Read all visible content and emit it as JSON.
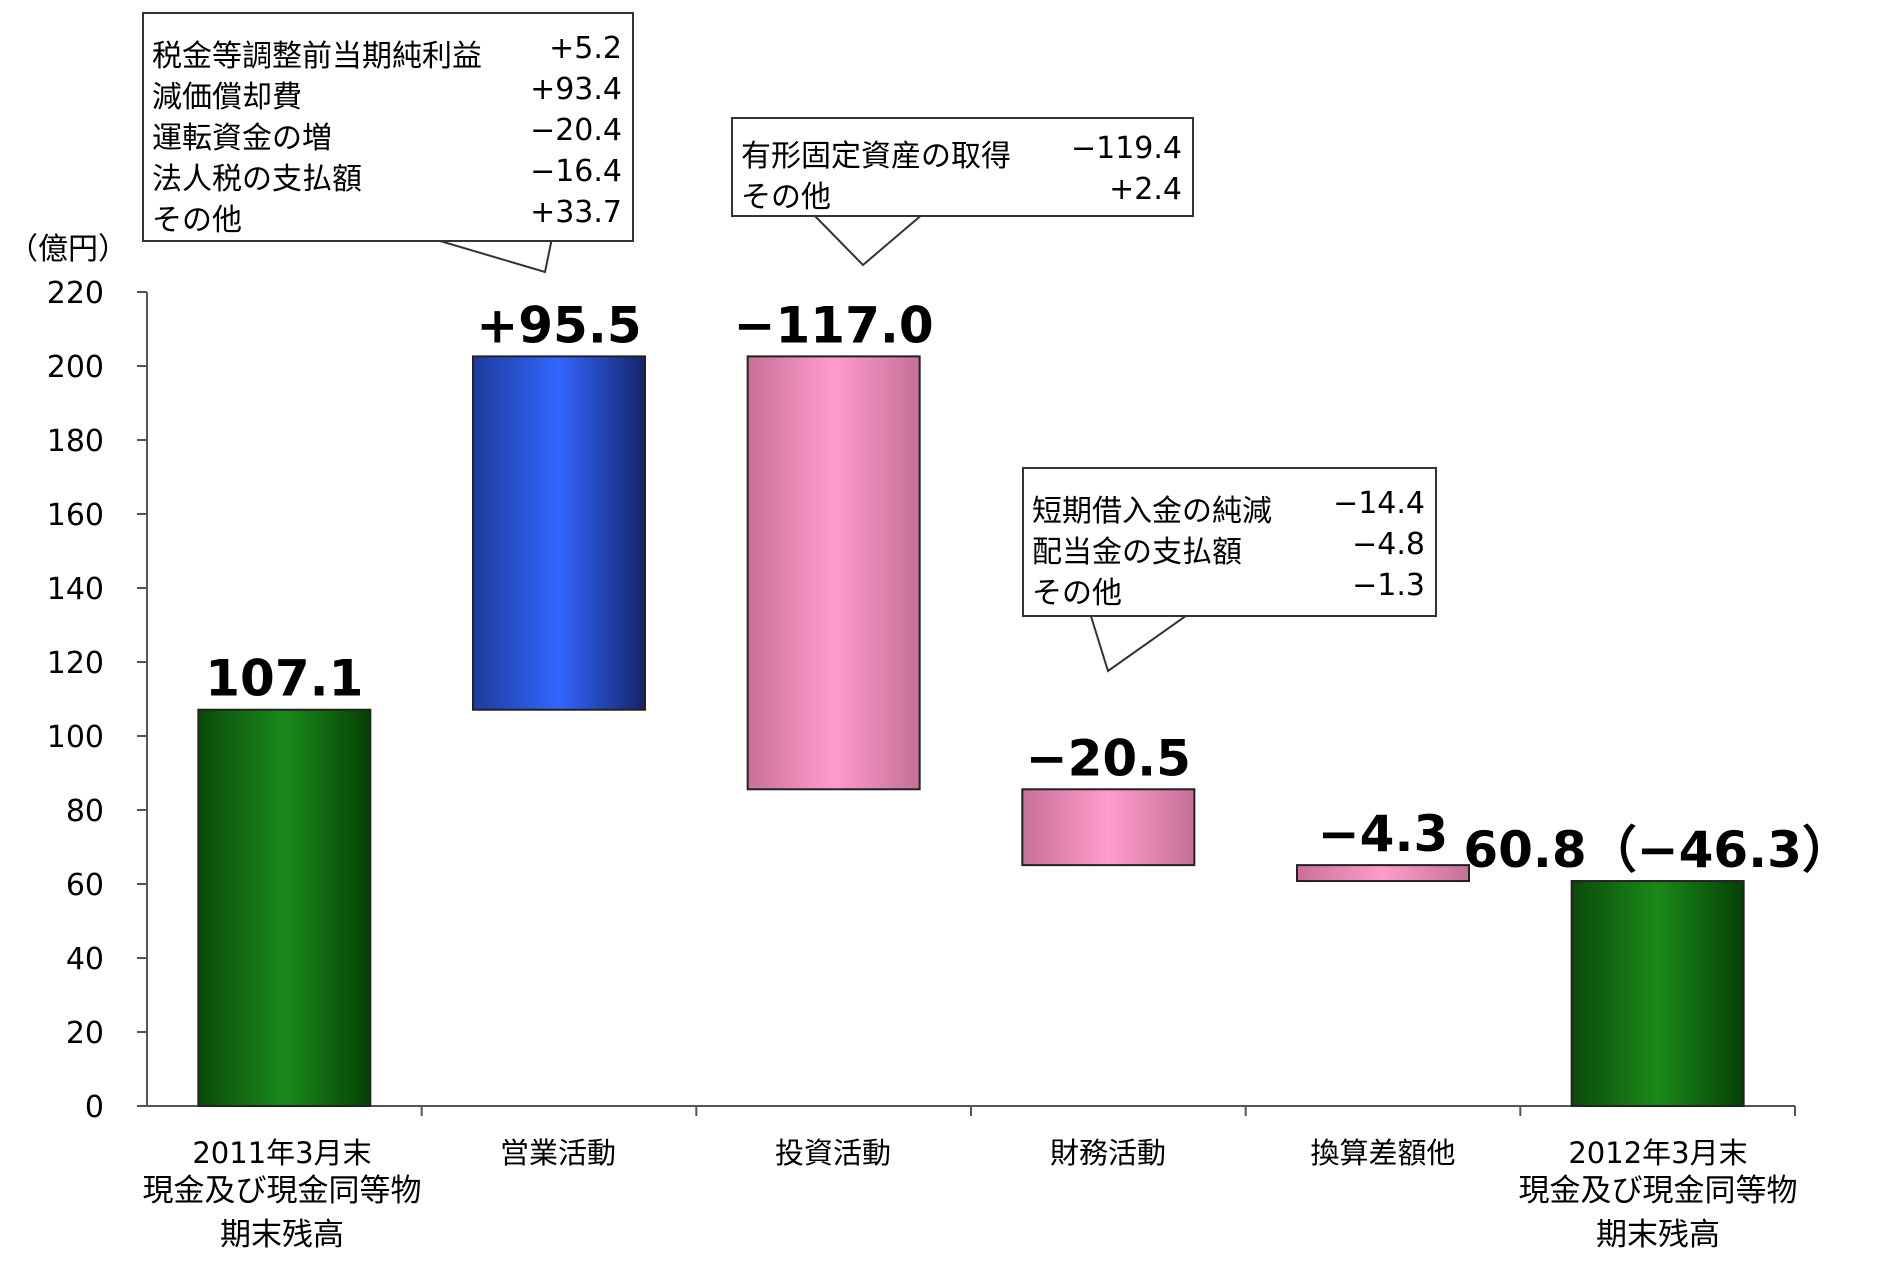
{
  "unit_label": "（億円）",
  "chart_data": {
    "type": "bar",
    "subtype": "waterfall",
    "ylim": [
      0,
      220
    ],
    "y_ticks": [
      0,
      20,
      40,
      60,
      80,
      100,
      120,
      140,
      160,
      180,
      200,
      220
    ],
    "grid": false,
    "categories": [
      {
        "line1": "2011年3月末",
        "line2": "現金及び現金同等物",
        "line3": "期末残高"
      },
      {
        "line1": "営業活動"
      },
      {
        "line1": "投資活動"
      },
      {
        "line1": "財務活動"
      },
      {
        "line1": "換算差額他"
      },
      {
        "line1": "2012年3月末",
        "line2": "現金及び現金同等物",
        "line3": "期末残高"
      }
    ],
    "bars": [
      {
        "kind": "total",
        "start": 0,
        "end": 107.1,
        "label": "107.1",
        "color": "#0e6e0e"
      },
      {
        "kind": "increase",
        "start": 107.1,
        "end": 202.6,
        "label": "+95.5",
        "color": "#2f5fef"
      },
      {
        "kind": "decrease",
        "start": 202.6,
        "end": 85.6,
        "label": "−117.0",
        "color": "#f090c0"
      },
      {
        "kind": "decrease",
        "start": 85.6,
        "end": 65.1,
        "label": "−20.5",
        "color": "#f090c0"
      },
      {
        "kind": "decrease",
        "start": 65.1,
        "end": 60.8,
        "label": "−4.3",
        "color": "#f090c0"
      },
      {
        "kind": "total",
        "start": 0,
        "end": 60.8,
        "label": "60.8（−46.3）",
        "color": "#0e6e0e"
      }
    ],
    "annotations": [
      {
        "bar": 1,
        "items": [
          {
            "label": "税金等調整前当期純利益",
            "value": "+5.2"
          },
          {
            "label": "減価償却費",
            "value": "+93.4"
          },
          {
            "label": "運転資金の増",
            "value": "−20.4"
          },
          {
            "label": "法人税の支払額",
            "value": "−16.4"
          },
          {
            "label": "その他",
            "value": "+33.7"
          }
        ]
      },
      {
        "bar": 2,
        "items": [
          {
            "label": "有形固定資産の取得",
            "value": "−119.4"
          },
          {
            "label": "その他",
            "value": "+2.4"
          }
        ]
      },
      {
        "bar": 3,
        "items": [
          {
            "label": "短期借入金の純減",
            "value": "−14.4"
          },
          {
            "label": "配当金の支払額",
            "value": "−4.8"
          },
          {
            "label": "その他",
            "value": "−1.3"
          }
        ]
      }
    ]
  }
}
